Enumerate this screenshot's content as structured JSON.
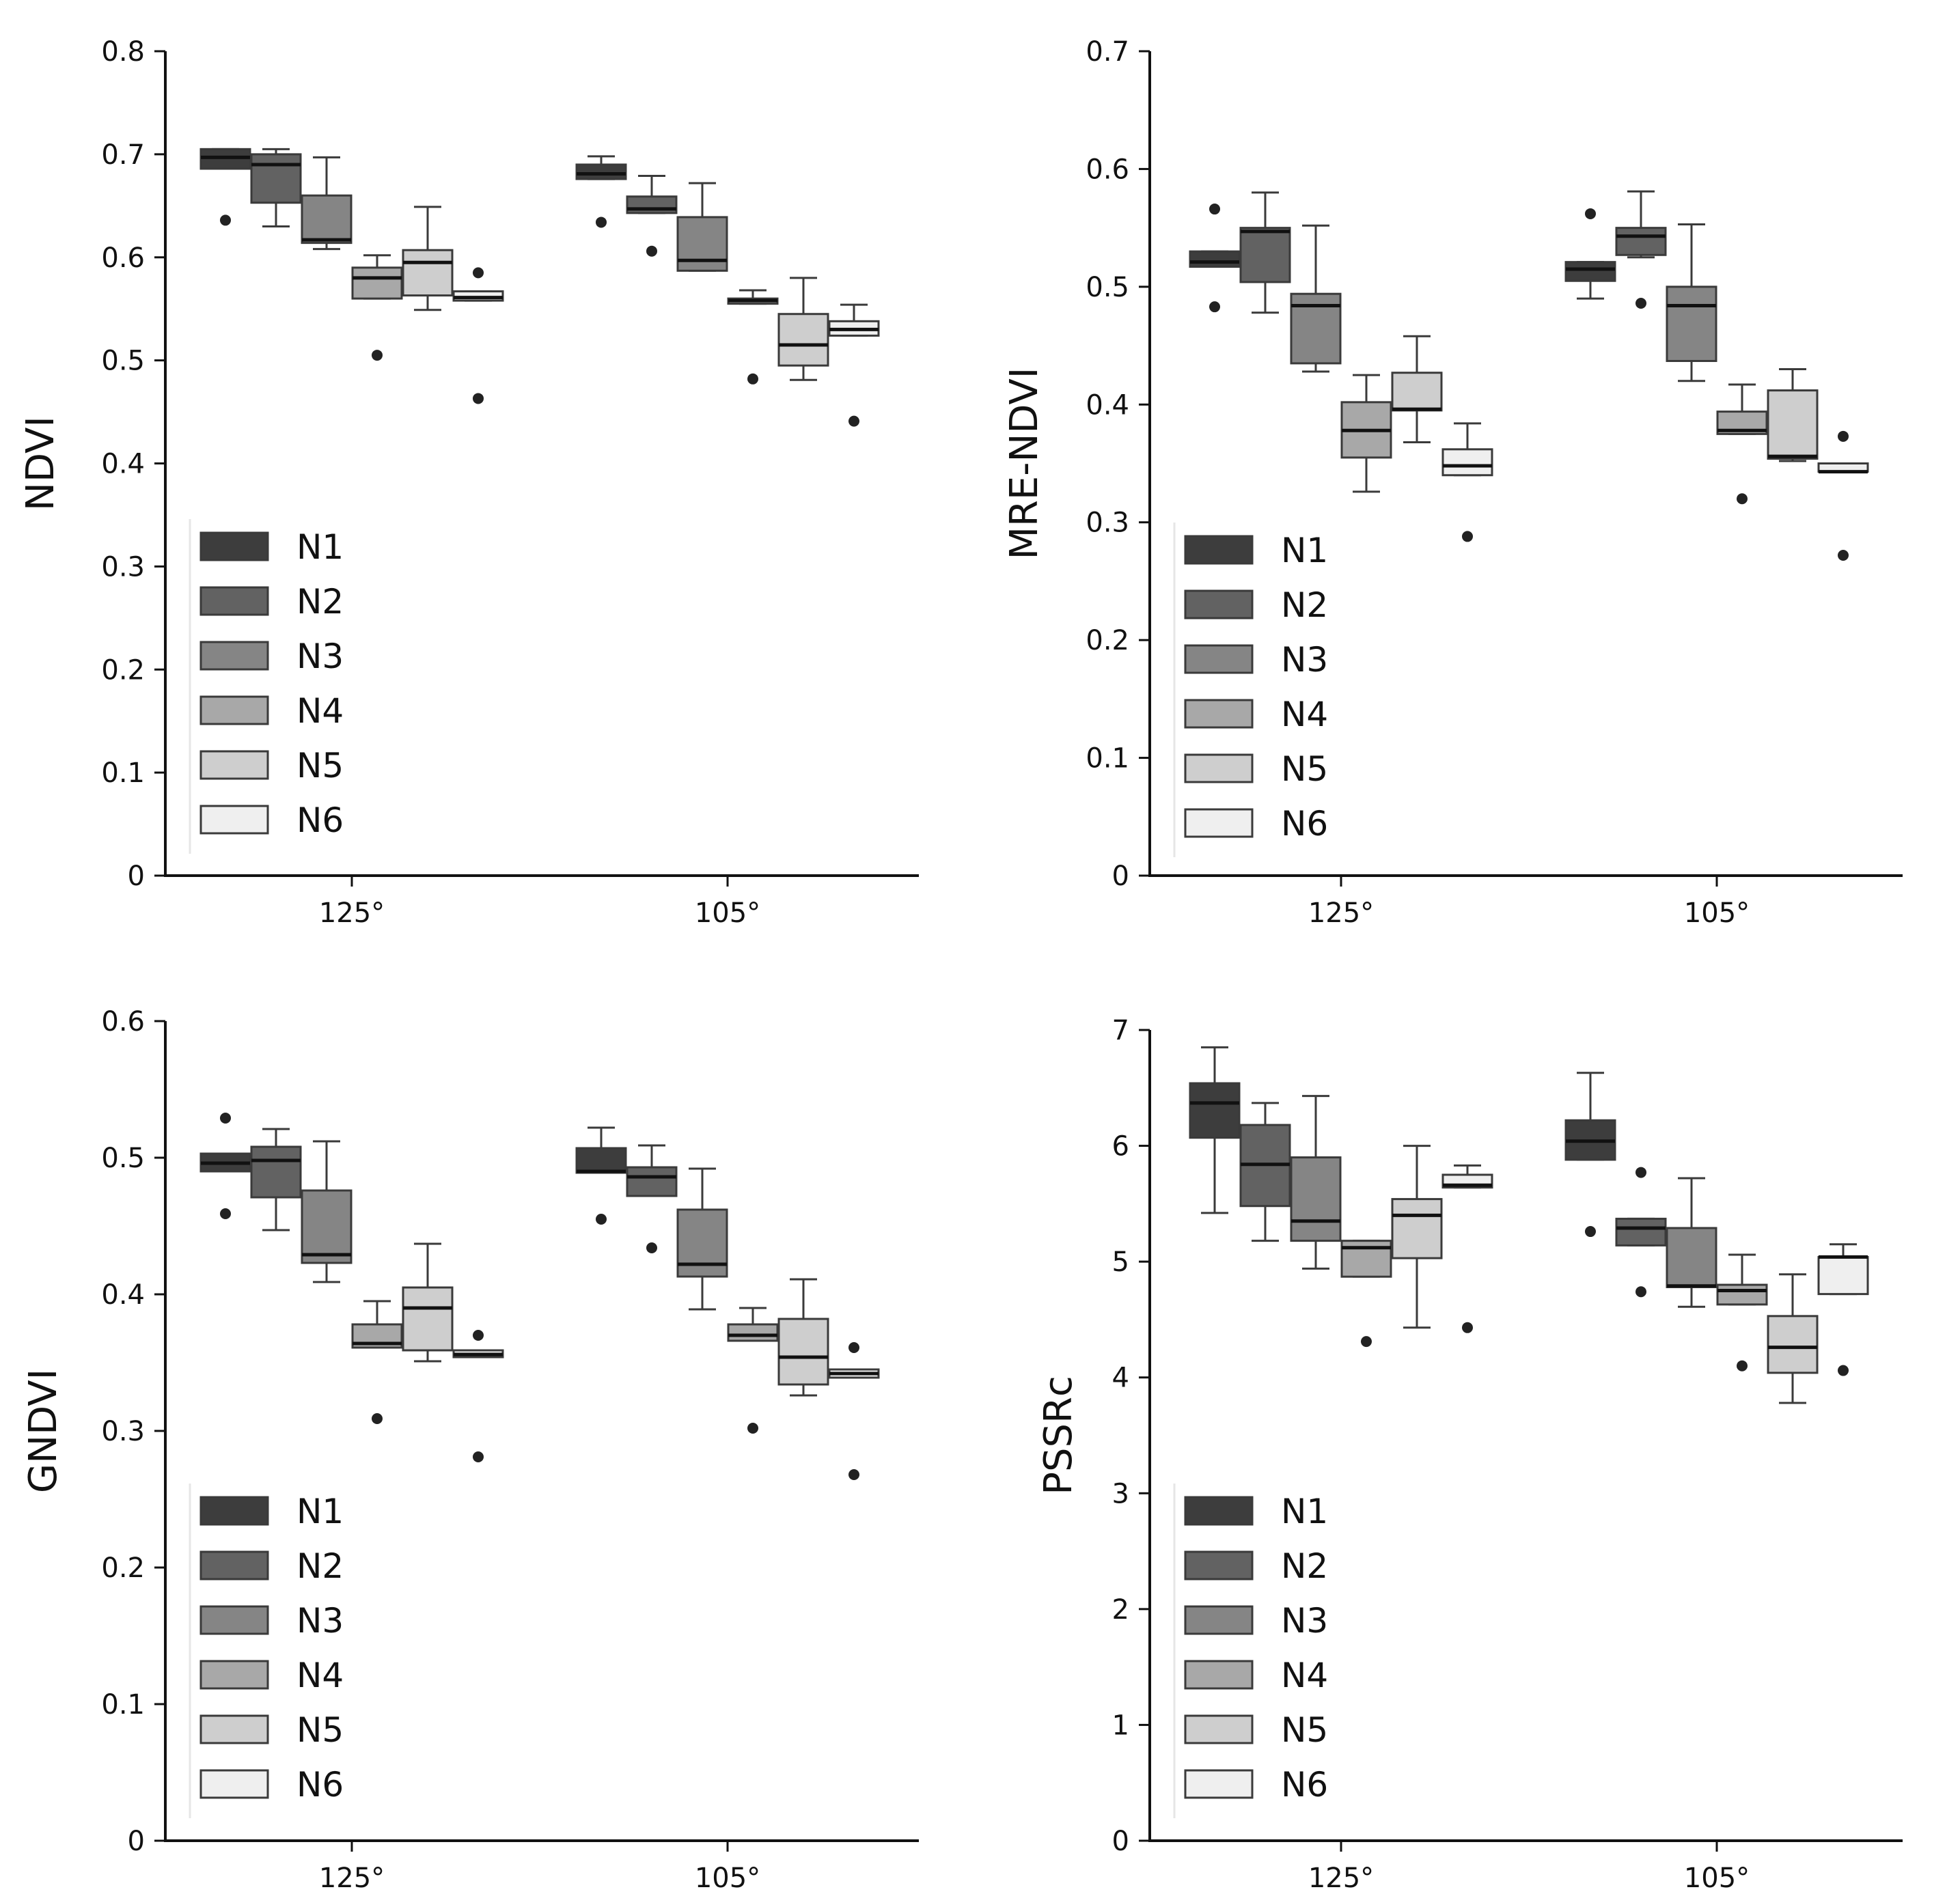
{
  "chart_data": [
    {
      "type": "box",
      "ylabel": "NDVI",
      "ylim": [
        0,
        0.8
      ],
      "yticks": [
        0,
        0.1,
        0.2,
        0.3,
        0.4,
        0.5,
        0.6,
        0.7,
        0.8
      ],
      "ytick_labels": [
        "0",
        "0.1",
        "0.2",
        "0.3",
        "0.4",
        "0.5",
        "0.6",
        "0.7",
        "0.8"
      ],
      "categories": [
        "125°",
        "105°"
      ],
      "legend": {
        "position": "lower-left",
        "entries": [
          "N1",
          "N2",
          "N3",
          "N4",
          "N5",
          "N6"
        ]
      },
      "series": [
        {
          "name": "N1",
          "boxes": [
            {
              "whislo": 0.686,
              "q1": 0.686,
              "med": 0.697,
              "q3": 0.705,
              "whishi": 0.705,
              "fliers": [
                0.636
              ]
            },
            {
              "whislo": 0.676,
              "q1": 0.676,
              "med": 0.681,
              "q3": 0.69,
              "whishi": 0.698,
              "fliers": [
                0.634
              ]
            }
          ]
        },
        {
          "name": "N2",
          "boxes": [
            {
              "whislo": 0.63,
              "q1": 0.653,
              "med": 0.69,
              "q3": 0.7,
              "whishi": 0.705,
              "fliers": []
            },
            {
              "whislo": 0.643,
              "q1": 0.643,
              "med": 0.647,
              "q3": 0.659,
              "whishi": 0.679,
              "fliers": [
                0.606
              ]
            }
          ]
        },
        {
          "name": "N3",
          "boxes": [
            {
              "whislo": 0.608,
              "q1": 0.614,
              "med": 0.617,
              "q3": 0.66,
              "whishi": 0.697,
              "fliers": []
            },
            {
              "whislo": 0.587,
              "q1": 0.587,
              "med": 0.597,
              "q3": 0.639,
              "whishi": 0.672,
              "fliers": []
            }
          ]
        },
        {
          "name": "N4",
          "boxes": [
            {
              "whislo": 0.56,
              "q1": 0.56,
              "med": 0.58,
              "q3": 0.59,
              "whishi": 0.602,
              "fliers": [
                0.505
              ]
            },
            {
              "whislo": 0.555,
              "q1": 0.555,
              "med": 0.558,
              "q3": 0.56,
              "whishi": 0.568,
              "fliers": [
                0.482
              ]
            }
          ]
        },
        {
          "name": "N5",
          "boxes": [
            {
              "whislo": 0.549,
              "q1": 0.563,
              "med": 0.595,
              "q3": 0.607,
              "whishi": 0.649,
              "fliers": []
            },
            {
              "whislo": 0.481,
              "q1": 0.495,
              "med": 0.515,
              "q3": 0.545,
              "whishi": 0.58,
              "fliers": []
            }
          ]
        },
        {
          "name": "N6",
          "boxes": [
            {
              "whislo": 0.558,
              "q1": 0.558,
              "med": 0.561,
              "q3": 0.567,
              "whishi": 0.567,
              "fliers": [
                0.585,
                0.463
              ]
            },
            {
              "whislo": 0.524,
              "q1": 0.524,
              "med": 0.53,
              "q3": 0.538,
              "whishi": 0.554,
              "fliers": [
                0.441
              ]
            }
          ]
        }
      ]
    },
    {
      "type": "box",
      "ylabel": "MRE-NDVI",
      "ylim": [
        0,
        0.7
      ],
      "yticks": [
        0,
        0.1,
        0.2,
        0.3,
        0.4,
        0.5,
        0.6,
        0.7
      ],
      "ytick_labels": [
        "0",
        "0.1",
        "0.2",
        "0.3",
        "0.4",
        "0.5",
        "0.6",
        "0.7"
      ],
      "categories": [
        "125°",
        "105°"
      ],
      "legend": {
        "position": "lower-left",
        "entries": [
          "N1",
          "N2",
          "N3",
          "N4",
          "N5",
          "N6"
        ]
      },
      "series": [
        {
          "name": "N1",
          "boxes": [
            {
              "whislo": 0.517,
              "q1": 0.517,
              "med": 0.521,
              "q3": 0.53,
              "whishi": 0.53,
              "fliers": [
                0.566,
                0.483
              ]
            },
            {
              "whislo": 0.49,
              "q1": 0.505,
              "med": 0.515,
              "q3": 0.521,
              "whishi": 0.521,
              "fliers": [
                0.562
              ]
            }
          ]
        },
        {
          "name": "N2",
          "boxes": [
            {
              "whislo": 0.478,
              "q1": 0.504,
              "med": 0.547,
              "q3": 0.55,
              "whishi": 0.58,
              "fliers": []
            },
            {
              "whislo": 0.525,
              "q1": 0.527,
              "med": 0.543,
              "q3": 0.55,
              "whishi": 0.581,
              "fliers": [
                0.486
              ]
            }
          ]
        },
        {
          "name": "N3",
          "boxes": [
            {
              "whislo": 0.428,
              "q1": 0.435,
              "med": 0.484,
              "q3": 0.494,
              "whishi": 0.552,
              "fliers": []
            },
            {
              "whislo": 0.42,
              "q1": 0.437,
              "med": 0.484,
              "q3": 0.5,
              "whishi": 0.553,
              "fliers": []
            }
          ]
        },
        {
          "name": "N4",
          "boxes": [
            {
              "whislo": 0.326,
              "q1": 0.355,
              "med": 0.378,
              "q3": 0.402,
              "whishi": 0.425,
              "fliers": []
            },
            {
              "whislo": 0.375,
              "q1": 0.375,
              "med": 0.378,
              "q3": 0.394,
              "whishi": 0.417,
              "fliers": [
                0.32
              ]
            }
          ]
        },
        {
          "name": "N5",
          "boxes": [
            {
              "whislo": 0.368,
              "q1": 0.395,
              "med": 0.396,
              "q3": 0.427,
              "whishi": 0.458,
              "fliers": []
            },
            {
              "whislo": 0.352,
              "q1": 0.354,
              "med": 0.356,
              "q3": 0.412,
              "whishi": 0.43,
              "fliers": []
            }
          ]
        },
        {
          "name": "N6",
          "boxes": [
            {
              "whislo": 0.34,
              "q1": 0.34,
              "med": 0.348,
              "q3": 0.362,
              "whishi": 0.384,
              "fliers": [
                0.288
              ]
            },
            {
              "whislo": 0.343,
              "q1": 0.343,
              "med": 0.343,
              "q3": 0.35,
              "whishi": 0.35,
              "fliers": [
                0.373,
                0.272
              ]
            }
          ]
        }
      ]
    },
    {
      "type": "box",
      "ylabel": "GNDVI",
      "ylim": [
        0,
        0.6
      ],
      "yticks": [
        0,
        0.1,
        0.2,
        0.3,
        0.4,
        0.5,
        0.6
      ],
      "ytick_labels": [
        "0",
        "0.1",
        "0.2",
        "0.3",
        "0.4",
        "0.5",
        "0.6"
      ],
      "categories": [
        "125°",
        "105°"
      ],
      "legend": {
        "position": "lower-left",
        "entries": [
          "N1",
          "N2",
          "N3",
          "N4",
          "N5",
          "N6"
        ]
      },
      "series": [
        {
          "name": "N1",
          "boxes": [
            {
              "whislo": 0.49,
              "q1": 0.49,
              "med": 0.496,
              "q3": 0.503,
              "whishi": 0.503,
              "fliers": [
                0.529,
                0.459
              ]
            },
            {
              "whislo": 0.489,
              "q1": 0.489,
              "med": 0.49,
              "q3": 0.507,
              "whishi": 0.522,
              "fliers": [
                0.455
              ]
            }
          ]
        },
        {
          "name": "N2",
          "boxes": [
            {
              "whislo": 0.447,
              "q1": 0.471,
              "med": 0.498,
              "q3": 0.508,
              "whishi": 0.521,
              "fliers": []
            },
            {
              "whislo": 0.472,
              "q1": 0.472,
              "med": 0.486,
              "q3": 0.493,
              "whishi": 0.509,
              "fliers": [
                0.434
              ]
            }
          ]
        },
        {
          "name": "N3",
          "boxes": [
            {
              "whislo": 0.409,
              "q1": 0.423,
              "med": 0.429,
              "q3": 0.476,
              "whishi": 0.512,
              "fliers": []
            },
            {
              "whislo": 0.389,
              "q1": 0.413,
              "med": 0.422,
              "q3": 0.462,
              "whishi": 0.492,
              "fliers": []
            }
          ]
        },
        {
          "name": "N4",
          "boxes": [
            {
              "whislo": 0.361,
              "q1": 0.361,
              "med": 0.364,
              "q3": 0.378,
              "whishi": 0.395,
              "fliers": [
                0.309
              ]
            },
            {
              "whislo": 0.366,
              "q1": 0.366,
              "med": 0.37,
              "q3": 0.378,
              "whishi": 0.39,
              "fliers": [
                0.302
              ]
            }
          ]
        },
        {
          "name": "N5",
          "boxes": [
            {
              "whislo": 0.351,
              "q1": 0.359,
              "med": 0.39,
              "q3": 0.405,
              "whishi": 0.437,
              "fliers": []
            },
            {
              "whislo": 0.326,
              "q1": 0.334,
              "med": 0.354,
              "q3": 0.382,
              "whishi": 0.411,
              "fliers": []
            }
          ]
        },
        {
          "name": "N6",
          "boxes": [
            {
              "whislo": 0.354,
              "q1": 0.354,
              "med": 0.356,
              "q3": 0.359,
              "whishi": 0.359,
              "fliers": [
                0.37,
                0.281
              ]
            },
            {
              "whislo": 0.339,
              "q1": 0.339,
              "med": 0.342,
              "q3": 0.345,
              "whishi": 0.345,
              "fliers": [
                0.361,
                0.268
              ]
            }
          ]
        }
      ]
    },
    {
      "type": "box",
      "ylabel": "PSSRc",
      "ylim": [
        0,
        7
      ],
      "yticks": [
        0,
        1,
        2,
        3,
        4,
        5,
        6,
        7
      ],
      "ytick_labels": [
        "0",
        "1",
        "2",
        "3",
        "4",
        "5",
        "6",
        "7"
      ],
      "categories": [
        "125°",
        "105°"
      ],
      "legend": {
        "position": "lower-left",
        "entries": [
          "N1",
          "N2",
          "N3",
          "N4",
          "N5",
          "N6"
        ]
      },
      "series": [
        {
          "name": "N1",
          "boxes": [
            {
              "whislo": 5.42,
              "q1": 6.07,
              "med": 6.37,
              "q3": 6.54,
              "whishi": 6.85,
              "fliers": []
            },
            {
              "whislo": 5.88,
              "q1": 5.88,
              "med": 6.04,
              "q3": 6.22,
              "whishi": 6.63,
              "fliers": [
                5.26
              ]
            }
          ]
        },
        {
          "name": "N2",
          "boxes": [
            {
              "whislo": 5.18,
              "q1": 5.48,
              "med": 5.84,
              "q3": 6.18,
              "whishi": 6.37,
              "fliers": []
            },
            {
              "whislo": 5.14,
              "q1": 5.14,
              "med": 5.29,
              "q3": 5.37,
              "whishi": 5.37,
              "fliers": [
                5.77,
                4.74
              ]
            }
          ]
        },
        {
          "name": "N3",
          "boxes": [
            {
              "whislo": 4.94,
              "q1": 5.18,
              "med": 5.35,
              "q3": 5.9,
              "whishi": 6.43,
              "fliers": []
            },
            {
              "whislo": 4.61,
              "q1": 4.78,
              "med": 4.79,
              "q3": 5.29,
              "whishi": 5.72,
              "fliers": []
            }
          ]
        },
        {
          "name": "N4",
          "boxes": [
            {
              "whislo": 4.87,
              "q1": 4.87,
              "med": 5.12,
              "q3": 5.18,
              "whishi": 5.18,
              "fliers": [
                4.31
              ]
            },
            {
              "whislo": 4.63,
              "q1": 4.63,
              "med": 4.75,
              "q3": 4.8,
              "whishi": 5.06,
              "fliers": [
                4.1
              ]
            }
          ]
        },
        {
          "name": "N5",
          "boxes": [
            {
              "whislo": 4.43,
              "q1": 5.03,
              "med": 5.4,
              "q3": 5.54,
              "whishi": 6.0,
              "fliers": []
            },
            {
              "whislo": 3.78,
              "q1": 4.04,
              "med": 4.26,
              "q3": 4.53,
              "whishi": 4.89,
              "fliers": []
            }
          ]
        },
        {
          "name": "N6",
          "boxes": [
            {
              "whislo": 5.64,
              "q1": 5.64,
              "med": 5.66,
              "q3": 5.75,
              "whishi": 5.83,
              "fliers": [
                4.43
              ]
            },
            {
              "whislo": 4.72,
              "q1": 4.72,
              "med": 5.04,
              "q3": 5.04,
              "whishi": 5.15,
              "fliers": [
                4.06
              ]
            }
          ]
        }
      ]
    }
  ],
  "colors": {
    "N1": "#3d3d3d",
    "N2": "#626262",
    "N3": "#858585",
    "N4": "#a8a8a8",
    "N5": "#cecece",
    "N6": "#efefef",
    "edge": "#3a3a3a",
    "median": "#111111",
    "axis": "#111111"
  }
}
